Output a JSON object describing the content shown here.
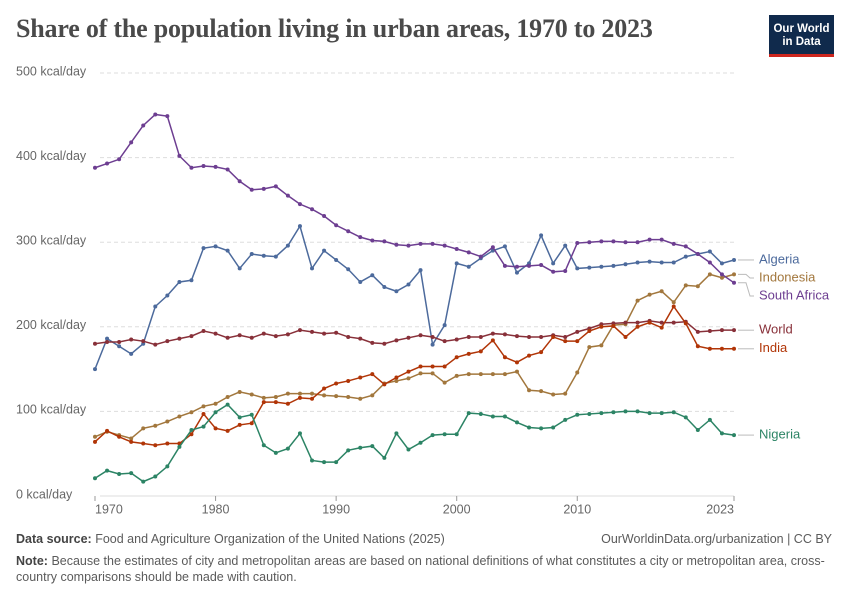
{
  "logo": "Our World in Data",
  "chart_data": {
    "type": "line",
    "title": "Share of the population living in urban areas, 1970 to 2023",
    "source_label": "Data source:",
    "source": "Food and Agriculture Organization of the United Nations (2025)",
    "url": "OurWorldinData.org/urbanization | CC BY",
    "note_label": "Note:",
    "note": "Because the estimates of city and metropolitan areas are based on national definitions of what constitutes a city or metropolitan area, cross-country comparisons should be made with caution.",
    "x": [
      1970,
      1971,
      1972,
      1973,
      1974,
      1975,
      1976,
      1977,
      1978,
      1979,
      1980,
      1981,
      1982,
      1983,
      1984,
      1985,
      1986,
      1987,
      1988,
      1989,
      1990,
      1991,
      1992,
      1993,
      1994,
      1995,
      1996,
      1997,
      1998,
      1999,
      2000,
      2001,
      2002,
      2003,
      2004,
      2005,
      2006,
      2007,
      2008,
      2009,
      2010,
      2011,
      2012,
      2013,
      2014,
      2015,
      2016,
      2017,
      2018,
      2019,
      2020,
      2021,
      2022,
      2023
    ],
    "xlim": [
      1970,
      2023
    ],
    "xticks": [
      1970,
      1980,
      1990,
      2000,
      2010,
      2023
    ],
    "ylim": [
      0,
      500
    ],
    "yticks": [
      {
        "value": 0,
        "label": "0 kcal/day"
      },
      {
        "value": 100,
        "label": "100 kcal/day"
      },
      {
        "value": 200,
        "label": "200 kcal/day"
      },
      {
        "value": 300,
        "label": "300 kcal/day"
      },
      {
        "value": 400,
        "label": "400 kcal/day"
      },
      {
        "value": 500,
        "label": "500 kcal/day"
      }
    ],
    "grid": true,
    "series": [
      {
        "name": "Algeria",
        "color": "#4c6a9c",
        "values": [
          150,
          186,
          177,
          168,
          180,
          224,
          237,
          253,
          255,
          293,
          295,
          290,
          269,
          286,
          284,
          283,
          296,
          319,
          269,
          290,
          279,
          268,
          253,
          261,
          247,
          242,
          250,
          267,
          179,
          202,
          275,
          271,
          281,
          290,
          295,
          264,
          275,
          308,
          275,
          296,
          269,
          270,
          271,
          272,
          274,
          276,
          277,
          276,
          276,
          283,
          286,
          289,
          275,
          279
        ]
      },
      {
        "name": "Indonesia",
        "color": "#a2773d",
        "values": [
          70,
          76,
          72,
          68,
          80,
          83,
          88,
          94,
          99,
          106,
          109,
          117,
          123,
          120,
          116,
          117,
          121,
          121,
          121,
          119,
          118,
          117,
          115,
          119,
          133,
          136,
          139,
          145,
          145,
          134,
          142,
          144,
          144,
          144,
          144,
          147,
          125,
          124,
          120,
          121,
          146,
          176,
          178,
          202,
          203,
          231,
          238,
          242,
          229,
          249,
          248,
          262,
          258,
          262
        ]
      },
      {
        "name": "South Africa",
        "color": "#6d3e91",
        "values": [
          388,
          393,
          398,
          418,
          438,
          451,
          449,
          402,
          388,
          390,
          389,
          386,
          372,
          362,
          363,
          366,
          355,
          345,
          339,
          331,
          320,
          313,
          306,
          302,
          301,
          297,
          296,
          298,
          298,
          296,
          292,
          288,
          283,
          294,
          272,
          271,
          272,
          273,
          265,
          266,
          299,
          300,
          301,
          301,
          300,
          300,
          303,
          303,
          298,
          295,
          286,
          276,
          262,
          252
        ]
      },
      {
        "name": "World",
        "color": "#883039",
        "values": [
          180,
          182,
          182,
          185,
          183,
          179,
          183,
          186,
          189,
          195,
          192,
          187,
          190,
          187,
          192,
          189,
          191,
          196,
          194,
          192,
          193,
          188,
          186,
          181,
          180,
          184,
          187,
          190,
          188,
          183,
          185,
          188,
          188,
          192,
          191,
          189,
          188,
          188,
          190,
          188,
          194,
          198,
          203,
          204,
          205,
          205,
          207,
          205,
          205,
          206,
          194,
          195,
          196,
          196
        ]
      },
      {
        "name": "India",
        "color": "#b13507",
        "values": [
          64,
          77,
          70,
          64,
          62,
          60,
          62,
          62,
          73,
          97,
          80,
          77,
          84,
          86,
          111,
          111,
          109,
          116,
          115,
          127,
          133,
          136,
          140,
          144,
          132,
          140,
          147,
          153,
          153,
          153,
          164,
          168,
          171,
          184,
          164,
          158,
          166,
          170,
          188,
          183,
          183,
          195,
          200,
          201,
          188,
          200,
          205,
          199,
          224,
          204,
          177,
          174,
          174,
          174
        ]
      },
      {
        "name": "Nigeria",
        "color": "#2c8465",
        "values": [
          21,
          30,
          26,
          27,
          17,
          23,
          35,
          58,
          78,
          82,
          99,
          108,
          93,
          96,
          60,
          51,
          56,
          74,
          42,
          40,
          40,
          54,
          57,
          59,
          45,
          74,
          55,
          63,
          72,
          73,
          73,
          98,
          97,
          94,
          94,
          87,
          81,
          80,
          81,
          90,
          96,
          97,
          98,
          99,
          100,
          100,
          98,
          98,
          99,
          93,
          78,
          90,
          74,
          72
        ]
      }
    ]
  }
}
